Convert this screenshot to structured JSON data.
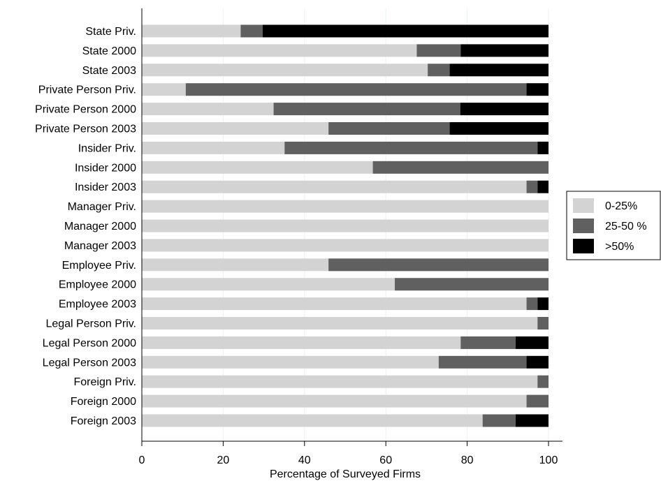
{
  "chart_data": {
    "type": "bar",
    "orientation": "horizontal",
    "stacked": true,
    "categories": [
      "State Priv.",
      "State 2000",
      "State 2003",
      "Private Person Priv.",
      "Private Person 2000",
      "Private Person 2003",
      "Insider Priv.",
      "Insider 2000",
      "Insider 2003",
      "Manager Priv.",
      "Manager 2000",
      "Manager 2003",
      "Employee Priv.",
      "Employee 2000",
      "Employee 2003",
      "Legal Person Priv.",
      "Legal Person 2000",
      "Legal Person 2003",
      "Foreign Priv.",
      "Foreign 2000",
      "Foreign 2003"
    ],
    "series": [
      {
        "name": "0-25%",
        "color": "#d3d3d3",
        "values": [
          24.3,
          67.6,
          70.3,
          10.8,
          32.4,
          45.9,
          35.1,
          56.8,
          94.6,
          100,
          100,
          100,
          45.9,
          62.2,
          94.6,
          97.3,
          78.4,
          73.0,
          97.3,
          94.6,
          83.8
        ]
      },
      {
        "name": "25-50 %",
        "color": "#606060",
        "values": [
          5.4,
          10.8,
          5.4,
          83.8,
          45.9,
          29.8,
          62.2,
          43.2,
          2.7,
          0,
          0,
          0,
          54.1,
          37.8,
          2.7,
          2.7,
          13.5,
          21.6,
          2.7,
          5.4,
          8.1
        ]
      },
      {
        "name": ">50%",
        "color": "#000000",
        "values": [
          70.3,
          21.6,
          24.3,
          5.4,
          21.7,
          24.3,
          2.7,
          0,
          2.7,
          0,
          0,
          0,
          0,
          0,
          2.7,
          0,
          8.1,
          5.4,
          0,
          0,
          8.1
        ]
      }
    ],
    "xlabel": "Percentage of Surveyed Firms",
    "xlim": [
      0,
      100
    ],
    "xticks": [
      0,
      20,
      40,
      60,
      80,
      100
    ],
    "grid": "vertical",
    "legend_position": "right"
  }
}
